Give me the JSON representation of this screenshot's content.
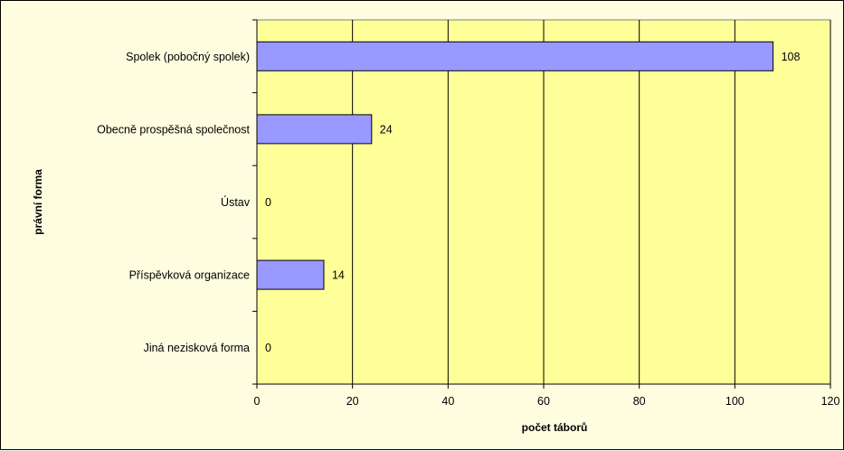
{
  "chart_data": {
    "type": "bar",
    "orientation": "horizontal",
    "categories": [
      "Spolek (pobočný spolek)",
      "Obecně prospěšná společnost",
      "Ústav",
      "Příspěvková organizace",
      "Jiná nezisková forma"
    ],
    "values": [
      108,
      24,
      0,
      14,
      0
    ],
    "data_labels": [
      "108",
      "24",
      "0",
      "14",
      "0"
    ],
    "xlabel": "počet táborů",
    "ylabel": "právní forma",
    "xlim": [
      0,
      120
    ],
    "xticks": [
      "0",
      "20",
      "40",
      "60",
      "80",
      "100",
      "120"
    ],
    "grid": "vertical",
    "legend": "none",
    "colors": {
      "bar": "#9999ff",
      "plot_background": "#ffff99",
      "chart_background": "#fffde0",
      "gridline": "#000000"
    }
  }
}
